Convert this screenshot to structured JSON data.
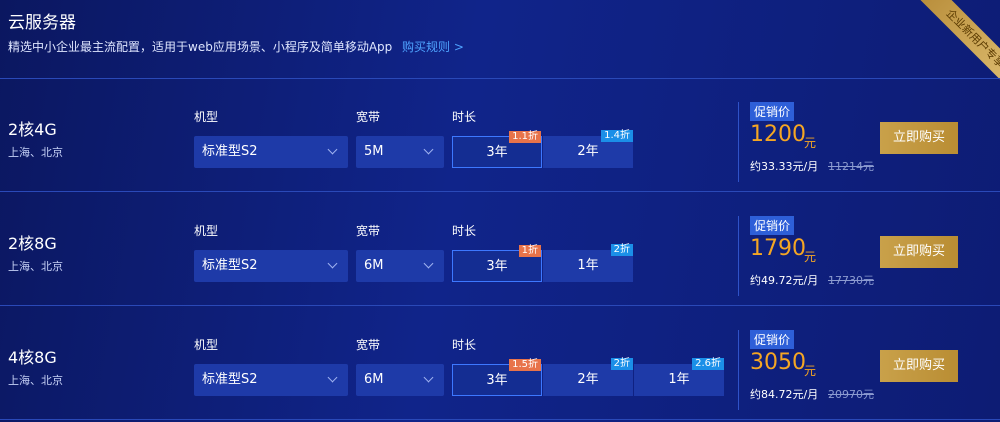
{
  "header": {
    "title": "云服务器",
    "subtitle": "精选中小企业最主流配置，适用于web应用场景、小程序及简单移动App",
    "link": "购买规则 >",
    "ribbon": "企业新用户专享"
  },
  "rows": [
    {
      "name": "2核4G",
      "region": "上海、北京",
      "model_label": "机型",
      "bandwidth_label": "宽带",
      "duration_label": "时长",
      "model": "标准型S2",
      "bandwidth": "5M",
      "durations": [
        {
          "label": "3年",
          "badge": "1.1折"
        },
        {
          "label": "2年",
          "badge": "1.4折"
        }
      ],
      "promo": "促销价",
      "price": "1200",
      "unit": "元",
      "monthly": "约33.33元/月",
      "original": "11214元",
      "button": "立即购买"
    },
    {
      "name": "2核8G",
      "region": "上海、北京",
      "model_label": "机型",
      "bandwidth_label": "宽带",
      "duration_label": "时长",
      "model": "标准型S2",
      "bandwidth": "6M",
      "durations": [
        {
          "label": "3年",
          "badge": "1折"
        },
        {
          "label": "1年",
          "badge": "2折"
        }
      ],
      "promo": "促销价",
      "price": "1790",
      "unit": "元",
      "monthly": "约49.72元/月",
      "original": "17730元",
      "button": "立即购买"
    },
    {
      "name": "4核8G",
      "region": "上海、北京",
      "model_label": "机型",
      "bandwidth_label": "宽带",
      "duration_label": "时长",
      "model": "标准型S2",
      "bandwidth": "6M",
      "durations": [
        {
          "label": "3年",
          "badge": "1.5折"
        },
        {
          "label": "2年",
          "badge": "2折"
        },
        {
          "label": "1年",
          "badge": "2.6折"
        }
      ],
      "promo": "促销价",
      "price": "3050",
      "unit": "元",
      "monthly": "约84.72元/月",
      "original": "20970元",
      "button": "立即购买"
    }
  ]
}
